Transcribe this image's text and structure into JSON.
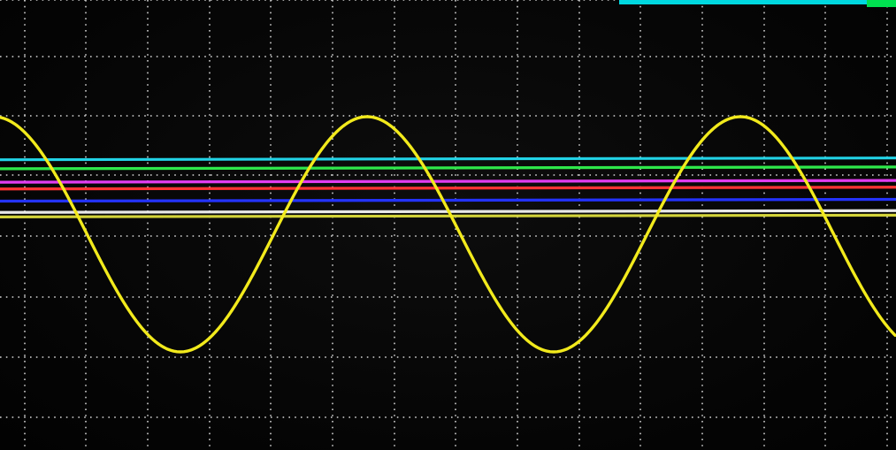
{
  "scope": {
    "grid": true,
    "background_color": "#050505",
    "grid_color": "#d8d8d8",
    "corner_indicator_colors": [
      "#00d8e0",
      "#00e050"
    ],
    "flat_traces": [
      {
        "color": "#22d3e6",
        "level": 0.355
      },
      {
        "color": "#2ee84a",
        "level": 0.375
      },
      {
        "color": "#e23cf0",
        "level": 0.405
      },
      {
        "color": "#ff3434",
        "level": 0.42
      },
      {
        "color": "#2433ff",
        "level": 0.447
      },
      {
        "color": "#e8e8e8",
        "level": 0.472
      },
      {
        "color": "#d4d43a",
        "level": 0.482
      }
    ],
    "sine_trace": {
      "color": "#f2ea1c",
      "cycles_visible": 2.4
    }
  }
}
